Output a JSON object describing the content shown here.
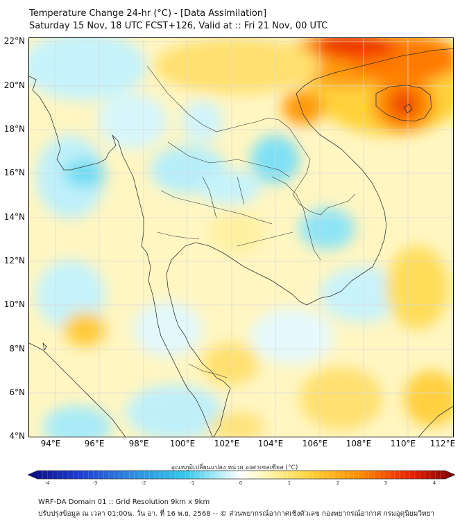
{
  "header": {
    "title": "Temperature Change 24-hr (°C) - [Data Assimilation]",
    "subtitle": "Saturday 15 Nov, 18 UTC FCST+126, Valid at :: Fri 21 Nov, 00 UTC"
  },
  "map": {
    "lat_labels": [
      "22°N",
      "20°N",
      "18°N",
      "16°N",
      "14°N",
      "12°N",
      "10°N",
      "8°N",
      "6°N",
      "4°N"
    ],
    "lon_labels": [
      "94°E",
      "96°E",
      "98°E",
      "100°E",
      "102°E",
      "104°E",
      "106°E",
      "108°E",
      "110°E",
      "112°E"
    ]
  },
  "colorbar": {
    "label": "อุณหภูมิเปลี่ยนแปลง หน่วย องศาเซลเซียส (°C)",
    "ticks": [
      "-4",
      "-3",
      "-2",
      "-1",
      "0",
      "1",
      "2",
      "3",
      "4"
    ],
    "min": -4,
    "max": 4,
    "colors": [
      "#0a0a7a",
      "#1e3cd2",
      "#2f8ee0",
      "#35c8ec",
      "#c6f3fb",
      "#ffffff",
      "#fff6b0",
      "#ffd23a",
      "#ff8a00",
      "#e81e00",
      "#7a0000"
    ]
  },
  "footer": {
    "line1": "WRF-DA Domain 01 :: Grid Resolution 9km x 9km",
    "line2": "ปรับปรุงข้อมูล ณ เวลา 01:00น. วัน อา. ที่ 16 พ.ย. 2568 -- © ส่วนพยากรณ์อากาศเชิงตัวเลข กองพยากรณ์อากาศ กรมอุตุนิยมวิทยา"
  }
}
